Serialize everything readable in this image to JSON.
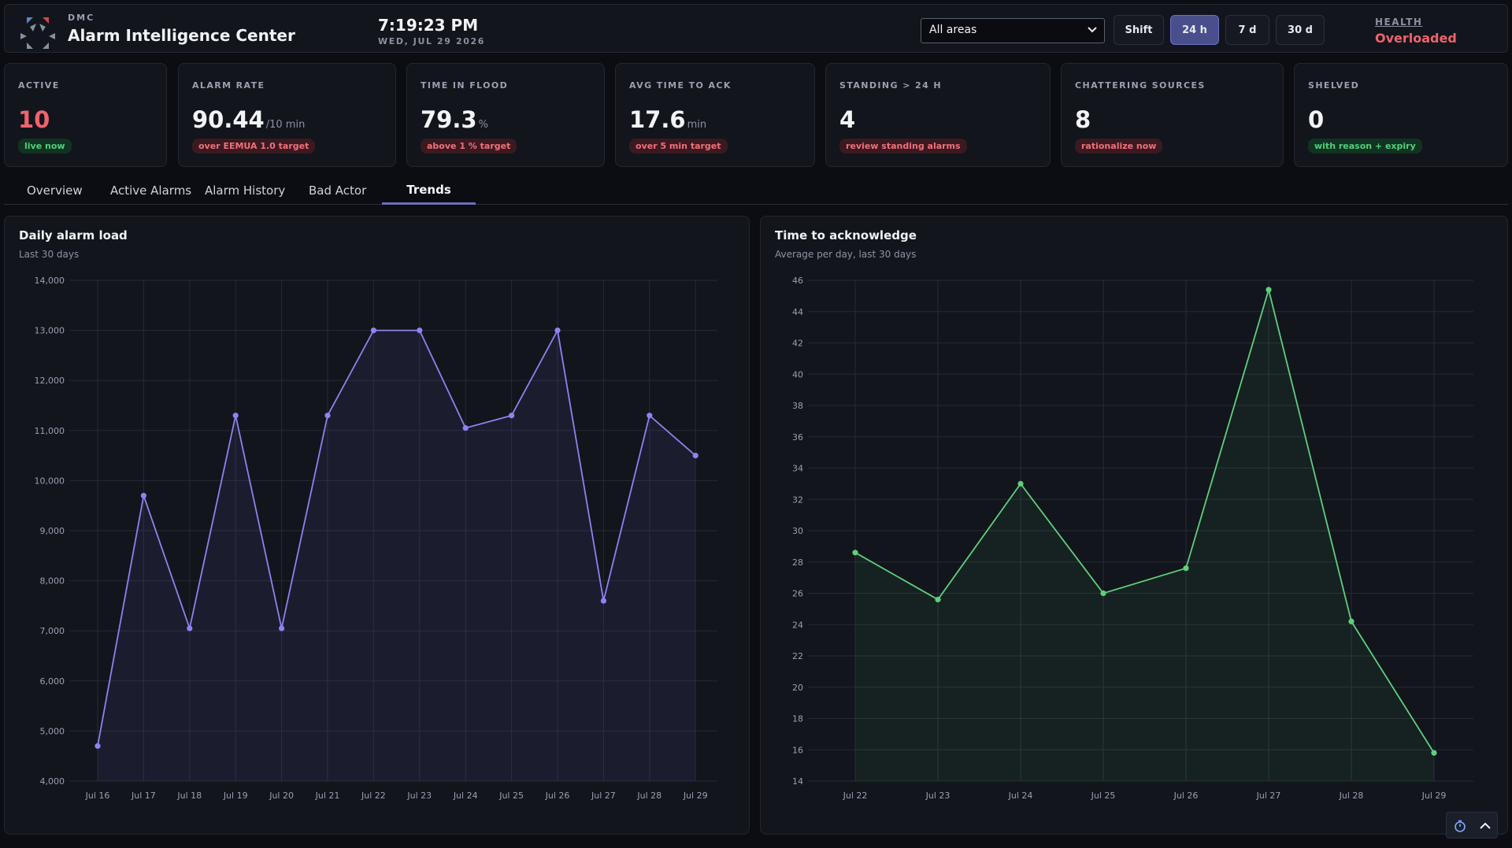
{
  "header": {
    "brand_small": "DMC",
    "title": "Alarm Intelligence Center",
    "clock": "7:19:23 PM",
    "date": "WED, JUL 29 2026",
    "area_select": "All areas",
    "ranges": [
      "Shift",
      "24 h",
      "7 d",
      "30 d"
    ],
    "active_range": "24 h",
    "health_label": "HEALTH",
    "health_value": "Overloaded"
  },
  "kpis": [
    {
      "label": "ACTIVE",
      "value": "10",
      "unit": "",
      "badge": "live now",
      "badge_tone": "green",
      "value_tone": "red"
    },
    {
      "label": "ALARM RATE",
      "value": "90.44",
      "unit": "/10 min",
      "badge": "over EEMUA 1.0 target",
      "badge_tone": "red",
      "value_tone": "normal"
    },
    {
      "label": "TIME IN FLOOD",
      "value": "79.3",
      "unit": "%",
      "badge": "above 1 % target",
      "badge_tone": "red",
      "value_tone": "normal"
    },
    {
      "label": "AVG TIME TO ACK",
      "value": "17.6",
      "unit": "min",
      "badge": "over 5 min target",
      "badge_tone": "red",
      "value_tone": "normal"
    },
    {
      "label": "STANDING > 24 H",
      "value": "4",
      "unit": "",
      "badge": "review standing alarms",
      "badge_tone": "red",
      "value_tone": "normal"
    },
    {
      "label": "CHATTERING SOURCES",
      "value": "8",
      "unit": "",
      "badge": "rationalize now",
      "badge_tone": "red",
      "value_tone": "normal"
    },
    {
      "label": "SHELVED",
      "value": "0",
      "unit": "",
      "badge": "with reason + expiry",
      "badge_tone": "green",
      "value_tone": "normal"
    }
  ],
  "tabs": [
    "Overview",
    "Active Alarms",
    "Alarm History",
    "Bad Actor",
    "Trends"
  ],
  "active_tab": "Trends",
  "colors": {
    "accent": "#6a6fb8",
    "load_line": "#8b84f0",
    "ack_line": "#5fcf7c",
    "danger": "#f0636c",
    "ok": "#4fd07a"
  },
  "icons": {
    "area_select": "chevron-down-icon",
    "footer": [
      "timer-icon",
      "chevron-up-icon"
    ]
  },
  "chart_data": [
    {
      "type": "line",
      "title": "Daily alarm load",
      "subtitle": "Last 30 days",
      "xlabel": "",
      "ylabel": "",
      "x": [
        "Jul 16",
        "Jul 17",
        "Jul 18",
        "Jul 19",
        "Jul 20",
        "Jul 21",
        "Jul 22",
        "Jul 23",
        "Jul 24",
        "Jul 25",
        "Jul 26",
        "Jul 27",
        "Jul 28",
        "Jul 29"
      ],
      "values": [
        4700,
        9700,
        7050,
        11300,
        7050,
        11300,
        13000,
        13000,
        11050,
        11300,
        13000,
        7600,
        11300,
        10500
      ],
      "ylim": [
        4000,
        14000
      ],
      "yticks": [
        "4,000",
        "5,000",
        "6,000",
        "7,000",
        "8,000",
        "9,000",
        "10,000",
        "11,000",
        "12,000",
        "13,000",
        "14,000"
      ],
      "grid": true
    },
    {
      "type": "area",
      "title": "Time to acknowledge",
      "subtitle": "Average per day, last 30 days",
      "xlabel": "",
      "ylabel": "",
      "x": [
        "Jul 22",
        "Jul 23",
        "Jul 24",
        "Jul 25",
        "Jul 26",
        "Jul 27",
        "Jul 28",
        "Jul 29"
      ],
      "values": [
        28.6,
        25.6,
        33.0,
        26.0,
        27.6,
        45.4,
        24.2,
        15.8
      ],
      "ylim": [
        14,
        46
      ],
      "yticks": [
        "14",
        "16",
        "18",
        "20",
        "22",
        "24",
        "26",
        "28",
        "30",
        "32",
        "34",
        "36",
        "38",
        "40",
        "42",
        "44",
        "46"
      ],
      "grid": true
    }
  ]
}
